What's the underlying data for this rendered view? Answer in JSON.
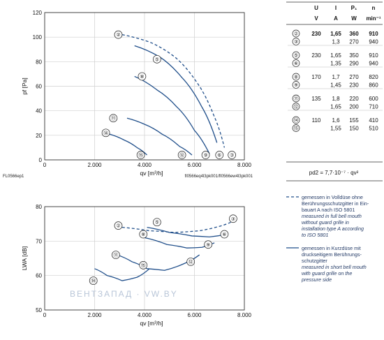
{
  "chart_data": [
    {
      "type": "line",
      "ylabel": "pf [Pa]",
      "xlabel": "qv [m³/h]",
      "xlim": [
        0,
        8000
      ],
      "ylim": [
        0,
        120
      ],
      "x_ticks": [
        "0",
        "2.000",
        "4.000",
        "6.000",
        "8.000"
      ],
      "y_ticks": [
        "0",
        "20",
        "40",
        "60",
        "80",
        "100",
        "120"
      ],
      "grid": true,
      "series": [
        {
          "name": "②",
          "style": "dashed",
          "label_at": [
            2950,
            102
          ],
          "points": [
            [
              3100,
              102
            ],
            [
              4200,
              96
            ],
            [
              5200,
              84
            ],
            [
              6100,
              63
            ],
            [
              6800,
              35
            ],
            [
              7200,
              10
            ]
          ]
        },
        {
          "name": "⑤",
          "style": "solid",
          "label_at": [
            4500,
            82
          ],
          "points": [
            [
              3600,
              93
            ],
            [
              4600,
              84
            ],
            [
              5500,
              67
            ],
            [
              6300,
              43
            ],
            [
              6900,
              14
            ]
          ]
        },
        {
          "name": "⑧",
          "style": "solid",
          "label_at": [
            3900,
            68
          ],
          "points": [
            [
              3600,
              68
            ],
            [
              4500,
              57
            ],
            [
              5300,
              43
            ],
            [
              6000,
              24
            ],
            [
              6600,
              5
            ]
          ]
        },
        {
          "name": "⑪",
          "style": "solid",
          "label_at": [
            2750,
            34
          ],
          "points": [
            [
              3300,
              34
            ],
            [
              4000,
              29
            ],
            [
              4700,
              21
            ],
            [
              5400,
              11
            ],
            [
              5900,
              4
            ]
          ]
        },
        {
          "name": "⑭",
          "style": "solid",
          "label_at": [
            2450,
            22
          ],
          "points": [
            [
              2600,
              21
            ],
            [
              3200,
              16
            ],
            [
              3700,
              10
            ],
            [
              4100,
              4
            ]
          ]
        },
        {
          "name": "③",
          "style": "dashed",
          "label_at": [
            7500,
            4
          ],
          "points": []
        },
        {
          "name": "⑥",
          "style": "solid",
          "label_at": [
            7000,
            4
          ],
          "points": []
        },
        {
          "name": "⑨",
          "style": "solid",
          "label_at": [
            6450,
            4
          ],
          "points": []
        },
        {
          "name": "⑫",
          "style": "solid",
          "label_at": [
            5500,
            4
          ],
          "points": []
        },
        {
          "name": "⑮",
          "style": "solid",
          "label_at": [
            3850,
            4
          ],
          "points": []
        }
      ],
      "footer_left": "FL0566ep1",
      "footer_right": "fl0566eq4l3pk001/fl0566ew4l3pk001"
    },
    {
      "type": "line",
      "ylabel": "LWA [dB]",
      "xlabel": "qv [m³/h]",
      "xlim": [
        0,
        8000
      ],
      "ylim": [
        50,
        80
      ],
      "x_ticks": [
        "0",
        "2.000",
        "4.000",
        "6.000",
        "8.000"
      ],
      "y_ticks": [
        "50",
        "60",
        "70",
        "80"
      ],
      "grid": true,
      "series": [
        {
          "name": "②→③",
          "style": "dashed",
          "points": [
            [
              3100,
              74
            ],
            [
              4200,
              73
            ],
            [
              5200,
              72.5
            ],
            [
              6200,
              73
            ],
            [
              7100,
              74.5
            ],
            [
              7600,
              76
            ]
          ]
        },
        {
          "name": "⑤→⑥",
          "style": "solid",
          "points": [
            [
              4100,
              74
            ],
            [
              5000,
              72.5
            ],
            [
              5900,
              71.5
            ],
            [
              6600,
              71.2
            ],
            [
              7300,
              72
            ]
          ]
        },
        {
          "name": "⑧→⑨",
          "style": "solid",
          "points": [
            [
              4000,
              71
            ],
            [
              4900,
              69
            ],
            [
              5700,
              68
            ],
            [
              6300,
              68.2
            ],
            [
              6800,
              69.5
            ]
          ]
        },
        {
          "name": "⑪→⑫",
          "style": "solid",
          "points": [
            [
              2900,
              66
            ],
            [
              3500,
              64
            ],
            [
              4100,
              62
            ],
            [
              4800,
              61.5
            ],
            [
              5600,
              63.5
            ],
            [
              6200,
              66
            ]
          ]
        },
        {
          "name": "⑭→⑮",
          "style": "solid",
          "points": [
            [
              2000,
              62
            ],
            [
              2500,
              60
            ],
            [
              3100,
              58.5
            ],
            [
              3700,
              59.5
            ],
            [
              4200,
              62
            ]
          ]
        }
      ],
      "labels": [
        {
          "name": "②",
          "at": [
            2950,
            74.5
          ]
        },
        {
          "name": "⑤",
          "at": [
            4500,
            75.5
          ]
        },
        {
          "name": "③",
          "at": [
            7550,
            76.5
          ]
        },
        {
          "name": "⑧",
          "at": [
            3950,
            72
          ]
        },
        {
          "name": "⑥",
          "at": [
            7200,
            72
          ]
        },
        {
          "name": "⑨",
          "at": [
            6550,
            69
          ]
        },
        {
          "name": "⑪",
          "at": [
            2850,
            66
          ]
        },
        {
          "name": "⑫",
          "at": [
            5850,
            64
          ]
        },
        {
          "name": "⑮",
          "at": [
            3950,
            63
          ]
        },
        {
          "name": "⑭",
          "at": [
            1950,
            58.5
          ]
        }
      ]
    }
  ],
  "table": {
    "head1": [
      "U",
      "I",
      "P₁",
      "n"
    ],
    "head2": [
      "V",
      "A",
      "W",
      "min⁻¹"
    ],
    "groups": [
      {
        "rows": [
          {
            "id": "②",
            "U": "230",
            "I": "1,65",
            "P": "360",
            "n": "910",
            "bold": true
          },
          {
            "id": "③",
            "U": "",
            "I": "1,3",
            "P": "270",
            "n": "940",
            "bold": false
          }
        ]
      },
      {
        "rows": [
          {
            "id": "⑤",
            "U": "230",
            "I": "1,65",
            "P": "350",
            "n": "910",
            "bold": false
          },
          {
            "id": "⑥",
            "U": "",
            "I": "1,35",
            "P": "290",
            "n": "940",
            "bold": false
          }
        ]
      },
      {
        "rows": [
          {
            "id": "⑧",
            "U": "170",
            "I": "1,7",
            "P": "270",
            "n": "820",
            "bold": false
          },
          {
            "id": "⑨",
            "U": "",
            "I": "1,45",
            "P": "230",
            "n": "860",
            "bold": false
          }
        ]
      },
      {
        "rows": [
          {
            "id": "⑪",
            "U": "135",
            "I": "1,8",
            "P": "220",
            "n": "600",
            "bold": false
          },
          {
            "id": "⑫",
            "U": "",
            "I": "1,65",
            "P": "200",
            "n": "710",
            "bold": false
          }
        ]
      },
      {
        "rows": [
          {
            "id": "⑭",
            "U": "110",
            "I": "1,6",
            "P": "155",
            "n": "410",
            "bold": false
          },
          {
            "id": "⑮",
            "U": "",
            "I": "1,55",
            "P": "150",
            "n": "510",
            "bold": false
          }
        ]
      }
    ],
    "formula": "pd2 = 7,7·10⁻⁷ · qv²"
  },
  "legend": [
    {
      "style": "dashed",
      "de": [
        "gemessen in Volldüse ohne",
        "Berührungsschutzgitter in Ein-",
        "bauart A nach ISO 5801"
      ],
      "en": [
        "measured in full bell mouth",
        "without guard grille in",
        "installation type A according",
        "to ISO 5801"
      ]
    },
    {
      "style": "solid",
      "de": [
        "gemessen in Kurzdüse mit",
        "druckseitigem Berührungs-",
        "schutzgitter"
      ],
      "en": [
        "measured in short bell mouth",
        "with guard grille on the",
        "pressure side"
      ]
    }
  ],
  "watermark": "ВЕНТЗАПАД · VW.BY",
  "colors": {
    "curve": "#1f4e8a",
    "grid": "#cfcfcf",
    "frame": "#333333"
  }
}
